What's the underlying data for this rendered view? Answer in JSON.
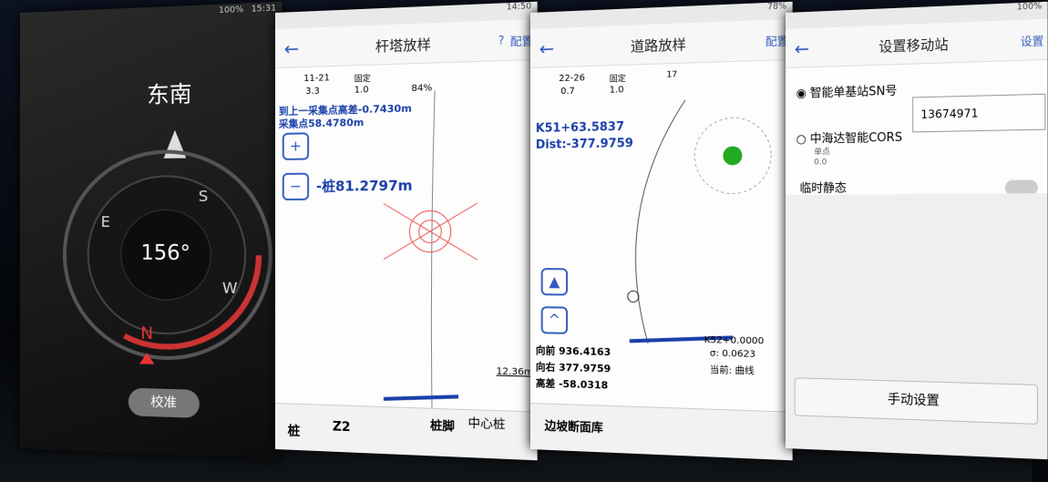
{
  "screens": [
    {
      "status_time": "15:31",
      "battery": "100%",
      "heading": "东南",
      "degrees": "156°",
      "cardinals": [
        "N",
        "E",
        "S",
        "W"
      ],
      "button": "校准"
    },
    {
      "status_time": "14:50",
      "title": "杆塔放样",
      "help": "?",
      "config": "配置",
      "sat": "11-21",
      "sat_sub": "3.3",
      "fix": "固定",
      "fix_sub": "1.0",
      "percent": "84%",
      "line1": "到上一采集点高差-0.7430m",
      "line2": "采集点58.4780m",
      "stake": "-桩81.2797m",
      "scale": "12.36m",
      "tabs": [
        "桩",
        "Z2",
        "桩脚",
        "中心桩"
      ]
    },
    {
      "status_battery": "78%",
      "title": "道路放样",
      "config": "配置",
      "sat": "22-26",
      "sat_sub": "0.7",
      "fix": "固定",
      "fix_sub": "1.0",
      "num": "17",
      "station": "K51+63.5837",
      "dist": "Dist:-377.9759",
      "forward": "向前 936.4163",
      "right": "向右 377.9759",
      "height": "高差 -58.0318",
      "next": "K52+0.0000",
      "sigma": "σ: 0.0623",
      "current": "当前: 曲线",
      "bottom": "边坡断面库"
    },
    {
      "battery": "100%",
      "title": "设置移动站",
      "config": "设置",
      "option1": "智能单基站SN号",
      "sn": "13674971",
      "option2": "中海达智能CORS",
      "single": "单点",
      "single_val": "0.0",
      "static": "临时静态",
      "button": "手动设置"
    }
  ]
}
